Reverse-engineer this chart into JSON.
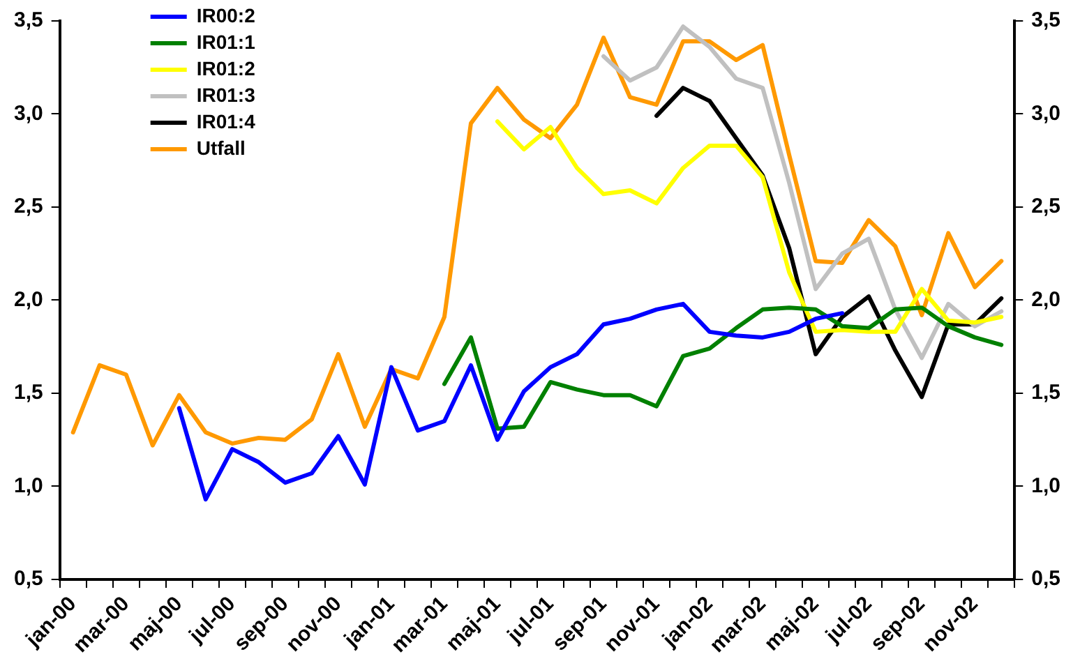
{
  "chart_data": {
    "type": "line",
    "categories": [
      "jan-00",
      null,
      "mar-00",
      null,
      "maj-00",
      null,
      "jul-00",
      null,
      "sep-00",
      null,
      "nov-00",
      null,
      "jan-01",
      null,
      "mar-01",
      null,
      "maj-01",
      null,
      "jul-01",
      null,
      "sep-01",
      null,
      "nov-01",
      null,
      "jan-02",
      null,
      "mar-02",
      null,
      "maj-02",
      null,
      "jul-02",
      null,
      "sep-02",
      null,
      "nov-02",
      null
    ],
    "series": [
      {
        "name": "IR00:2",
        "color": "#0000ff",
        "values": [
          null,
          null,
          null,
          null,
          1.42,
          0.93,
          1.2,
          1.13,
          1.02,
          1.07,
          1.27,
          1.01,
          1.64,
          1.3,
          1.35,
          1.65,
          1.25,
          1.51,
          1.64,
          1.71,
          1.87,
          1.9,
          1.95,
          1.98,
          1.83,
          1.81,
          1.8,
          1.83,
          1.9,
          1.93,
          null,
          null,
          null,
          null,
          null,
          null
        ]
      },
      {
        "name": "IR01:1",
        "color": "#008000",
        "values": [
          null,
          null,
          null,
          null,
          null,
          null,
          null,
          null,
          null,
          null,
          null,
          null,
          null,
          null,
          1.55,
          1.8,
          1.31,
          1.32,
          1.56,
          1.52,
          1.49,
          1.49,
          1.43,
          1.7,
          1.74,
          1.85,
          1.95,
          1.96,
          1.95,
          1.86,
          1.85,
          1.95,
          1.96,
          1.86,
          1.8,
          1.76
        ]
      },
      {
        "name": "IR01:2",
        "color": "#ffff00",
        "values": [
          null,
          null,
          null,
          null,
          null,
          null,
          null,
          null,
          null,
          null,
          null,
          null,
          null,
          null,
          null,
          null,
          2.96,
          2.81,
          2.93,
          2.71,
          2.57,
          2.59,
          2.52,
          2.71,
          2.83,
          2.83,
          2.66,
          2.15,
          1.83,
          1.84,
          1.83,
          1.83,
          2.06,
          1.89,
          1.88,
          1.91
        ]
      },
      {
        "name": "IR01:3",
        "color": "#c0c0c0",
        "values": [
          null,
          null,
          null,
          null,
          null,
          null,
          null,
          null,
          null,
          null,
          null,
          null,
          null,
          null,
          null,
          null,
          null,
          null,
          null,
          null,
          3.31,
          3.18,
          3.25,
          3.47,
          3.36,
          3.19,
          3.14,
          2.63,
          2.06,
          2.25,
          2.33,
          1.95,
          1.69,
          1.98,
          1.86,
          1.94
        ]
      },
      {
        "name": "IR01:4",
        "color": "#000000",
        "values": [
          null,
          null,
          null,
          null,
          null,
          null,
          null,
          null,
          null,
          null,
          null,
          null,
          null,
          null,
          null,
          null,
          null,
          null,
          null,
          null,
          null,
          null,
          2.99,
          3.14,
          3.07,
          2.87,
          2.67,
          2.28,
          1.71,
          1.91,
          2.02,
          1.73,
          1.48,
          1.87,
          1.87,
          2.01
        ]
      },
      {
        "name": "Utfall",
        "color": "#ff9900",
        "values": [
          1.29,
          1.65,
          1.6,
          1.22,
          1.49,
          1.29,
          1.23,
          1.26,
          1.25,
          1.36,
          1.71,
          1.32,
          1.63,
          1.58,
          1.91,
          2.95,
          3.14,
          2.97,
          2.87,
          3.05,
          3.41,
          3.09,
          3.05,
          3.39,
          3.39,
          3.29,
          3.37,
          2.78,
          2.21,
          2.2,
          2.43,
          2.29,
          1.92,
          2.36,
          2.07,
          2.21
        ]
      }
    ],
    "ylim": [
      0.5,
      3.5
    ],
    "yticks": [
      {
        "value": 0.5,
        "label": "0,5"
      },
      {
        "value": 1.0,
        "label": "1,0"
      },
      {
        "value": 1.5,
        "label": "1,5"
      },
      {
        "value": 2.0,
        "label": "2,0"
      },
      {
        "value": 2.5,
        "label": "2,5"
      },
      {
        "value": 3.0,
        "label": "3,0"
      },
      {
        "value": 3.5,
        "label": "3,5"
      }
    ],
    "y2lim": [
      0.5,
      3.5
    ],
    "y2ticks": [
      {
        "value": 0.5,
        "label": "0,5"
      },
      {
        "value": 1.0,
        "label": "1,0"
      },
      {
        "value": 1.5,
        "label": "1,5"
      },
      {
        "value": 2.0,
        "label": "2,0"
      },
      {
        "value": 2.5,
        "label": "2,5"
      },
      {
        "value": 3.0,
        "label": "3,0"
      },
      {
        "value": 3.5,
        "label": "3,5"
      }
    ],
    "grid": false,
    "legend": "top left",
    "marker": "none",
    "line_style": "solid"
  }
}
